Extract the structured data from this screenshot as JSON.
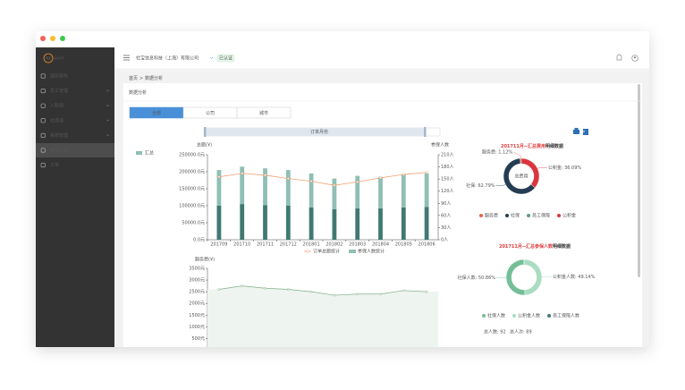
{
  "sidebar": {
    "logo_mark": "hr",
    "logo_text": "work",
    "items": [
      "组织架构",
      "员工管理",
      "入职通",
      "社保通",
      "系统管理",
      "数据分析",
      "工单"
    ],
    "active": 5
  },
  "header": {
    "company": "社宝信息科技（上海）有限公司",
    "badge": "已认证"
  },
  "breadcrumb": [
    "首页",
    ">",
    "数据分析"
  ],
  "page_title": "数据分析",
  "tabs": {
    "items": [
      "全部",
      "公司",
      "城市"
    ],
    "active": 0
  },
  "range_slider": {
    "label": "订单月份"
  },
  "combo_chart": {
    "type": "bar",
    "stacked": true,
    "legend_title": "汇总",
    "y_label": "总额(¥)",
    "y2_label": "参保人数",
    "categories": [
      "201709",
      "201710",
      "201711",
      "201712",
      "201801",
      "201802",
      "201803",
      "201804",
      "201805",
      "201806"
    ],
    "series": [
      {
        "color": "#3f7a72",
        "values": [
          100000,
          105000,
          102000,
          100000,
          95000,
          90000,
          92000,
          92000,
          95000,
          96000
        ]
      },
      {
        "name": "订单总额统计",
        "type": "line",
        "color": "#f0a070",
        "values": [
          185000,
          195000,
          190000,
          180000,
          172000,
          160000,
          170000,
          182000,
          192000,
          198000
        ]
      },
      {
        "name": "参保人数统计",
        "type": "bar",
        "color": "#8fbfb5",
        "values": [
          105000,
          110000,
          108000,
          105000,
          100000,
          90000,
          96000,
          93000,
          97000,
          99000
        ]
      }
    ],
    "ylim": [
      0,
      250000
    ],
    "yticks": [
      {
        "value": 0,
        "label": "0.0元"
      },
      {
        "value": 50000,
        "label": "50000.0元"
      },
      {
        "value": 100000,
        "label": "100000.0元"
      },
      {
        "value": 150000,
        "label": "150000.0元"
      },
      {
        "value": 200000,
        "label": "200000.0元"
      },
      {
        "value": 250000,
        "label": "250000.0元"
      }
    ],
    "y2lim": [
      0,
      210
    ],
    "y2ticks": [
      {
        "value": 0,
        "label": "0人"
      },
      {
        "value": 30,
        "label": "30人"
      },
      {
        "value": 60,
        "label": "60人"
      },
      {
        "value": 90,
        "label": "90人"
      },
      {
        "value": 120,
        "label": "120人"
      },
      {
        "value": 150,
        "label": "150人"
      },
      {
        "value": 180,
        "label": "180人"
      },
      {
        "value": 210,
        "label": "210人"
      }
    ]
  },
  "area_chart": {
    "type": "area",
    "y_label": "服务费(¥)",
    "color": "#7fae8a",
    "values": [
      2600,
      2750,
      2650,
      2600,
      2500,
      2350,
      2400,
      2400,
      2550,
      2500
    ],
    "ylim": [
      0,
      3500
    ],
    "yticks": [
      {
        "value": 500,
        "label": "500元"
      },
      {
        "value": 1000,
        "label": "1000元"
      },
      {
        "value": 1500,
        "label": "1500元"
      },
      {
        "value": 2000,
        "label": "2000元"
      },
      {
        "value": 2500,
        "label": "2500元"
      },
      {
        "value": 3000,
        "label": "3000元"
      },
      {
        "value": 3500,
        "label": "3500元"
      }
    ]
  },
  "cost_donut": {
    "type": "donut",
    "title_highlight": "201711月--汇总费用",
    "title_rest": "明细数据",
    "center_label": "总费用",
    "categories": [
      "服务费",
      "社保",
      "员工保障",
      "公积金"
    ],
    "values": [
      1.12,
      62.79,
      0,
      36.09
    ],
    "value_labels": [
      "服务费: 1.12%",
      "社保: 62.79%",
      null,
      "公积金: 36.09%"
    ],
    "colors": [
      "#e8664a",
      "#253d52",
      "#5b9a8f",
      "#d9363e"
    ]
  },
  "people_donut": {
    "type": "donut",
    "title_highlight": "201711月--汇总参保人数",
    "title_rest": "明细数据",
    "categories": [
      "社保人数",
      "公积金人数",
      "员工保障人数"
    ],
    "values": [
      50.86,
      49.14,
      0
    ],
    "value_labels": [
      "社保人数: 50.86%",
      "公积金人数: 49.14%",
      null
    ],
    "colors": [
      "#74bf97",
      "#a9dcc0",
      "#3f7a72"
    ]
  },
  "totals": [
    "总人数: 92",
    "总人次: 89"
  ]
}
